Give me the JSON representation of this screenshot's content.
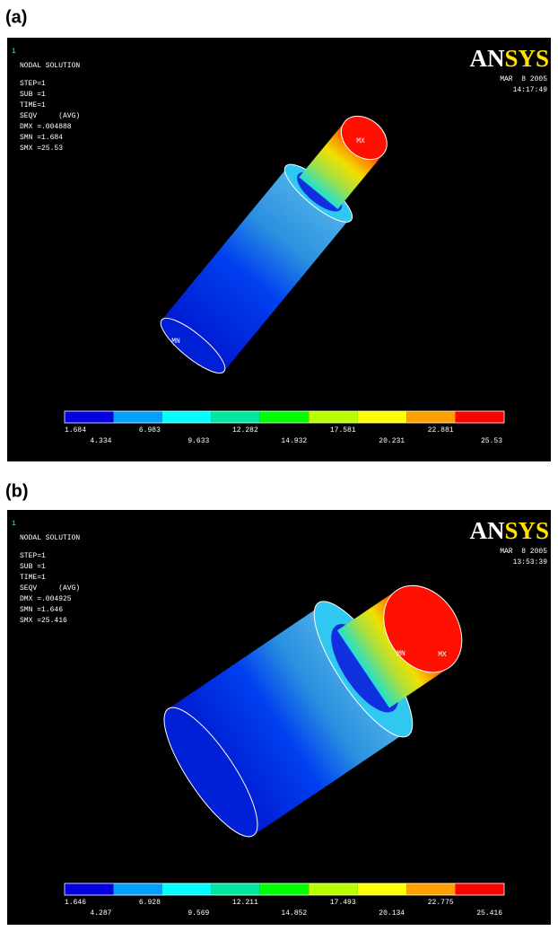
{
  "figure": {
    "panels": [
      {
        "label": "(a)",
        "window_number": "1",
        "heading": "NODAL SOLUTION",
        "info": [
          "STEP=1",
          "SUB =1",
          "TIME=1",
          "SEQV     (AVG)",
          "DMX =.004888",
          "SMN =1.684",
          "SMX =25.53"
        ],
        "logo": [
          "AN",
          "SYS"
        ],
        "date": "MAR  8 2005",
        "time": "14:17:49",
        "node_labels": [
          "MX",
          "MN"
        ],
        "legend": [
          1.684,
          4.334,
          6.983,
          9.633,
          12.282,
          14.932,
          17.581,
          20.231,
          22.881,
          25.53
        ]
      },
      {
        "label": "(b)",
        "window_number": "1",
        "heading": "NODAL SOLUTION",
        "info": [
          "STEP=1",
          "SUB =1",
          "TIME=1",
          "SEQV     (AVG)",
          "DMX =.004925",
          "SMN =1.646",
          "SMX =25.416"
        ],
        "logo": [
          "AN",
          "SYS"
        ],
        "date": "MAR  8 2005",
        "time": "13:53:39",
        "node_labels": [
          "MN",
          "MX"
        ],
        "legend": [
          1.646,
          4.287,
          6.928,
          9.569,
          12.211,
          14.852,
          17.493,
          20.134,
          22.775,
          25.416
        ]
      }
    ]
  }
}
